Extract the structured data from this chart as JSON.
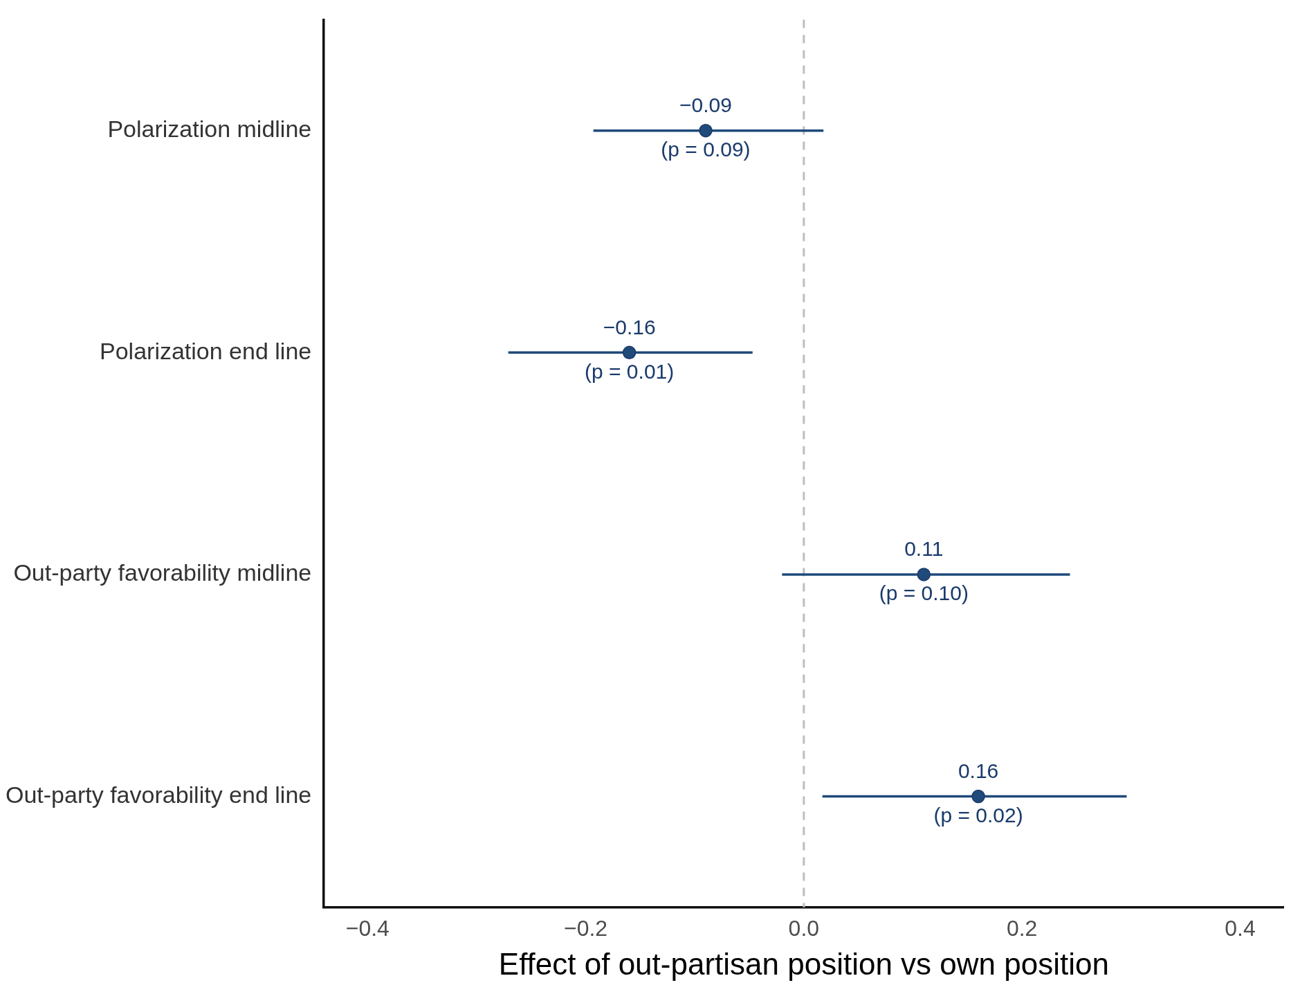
{
  "chart_data": {
    "type": "scatter",
    "orientation": "horizontal",
    "xlabel": "Effect of out-partisan position vs own position",
    "categories": [
      "Polarization midline",
      "Polarization end line",
      "Out-party favorability midline",
      "Out-party favorability end line"
    ],
    "values": [
      -0.09,
      -0.16,
      0.11,
      0.16
    ],
    "errors": [
      [
        -0.193,
        0.018
      ],
      [
        -0.271,
        -0.047
      ],
      [
        -0.02,
        0.244
      ],
      [
        0.017,
        0.296
      ]
    ],
    "value_labels": [
      "−0.09",
      "−0.16",
      "0.11",
      "0.16"
    ],
    "color": "#1f4a7a",
    "marker": "circle",
    "grid": false,
    "legend": false,
    "xlim": [
      -0.44,
      0.44
    ],
    "xticks": [
      {
        "value": -0.4,
        "label": "−0.4"
      },
      {
        "value": -0.2,
        "label": "−0.2"
      },
      {
        "value": 0,
        "label": "0.0"
      },
      {
        "value": 0.2,
        "label": "0.2"
      },
      {
        "value": 0.4,
        "label": "0.4"
      }
    ],
    "ref_lines": [
      {
        "axis": "x",
        "value": 0,
        "color": "#bdbdbd",
        "line_style": "dashed"
      }
    ],
    "annotations": [
      {
        "text": "(p = 0.09)",
        "x": -0.09,
        "y": "Polarization midline"
      },
      {
        "text": "(p = 0.01)",
        "x": -0.16,
        "y": "Polarization end line"
      },
      {
        "text": "(p = 0.10)",
        "x": 0.11,
        "y": "Out-party favorability midline"
      },
      {
        "text": "(p = 0.02)",
        "x": 0.16,
        "y": "Out-party favorability end line"
      }
    ]
  }
}
